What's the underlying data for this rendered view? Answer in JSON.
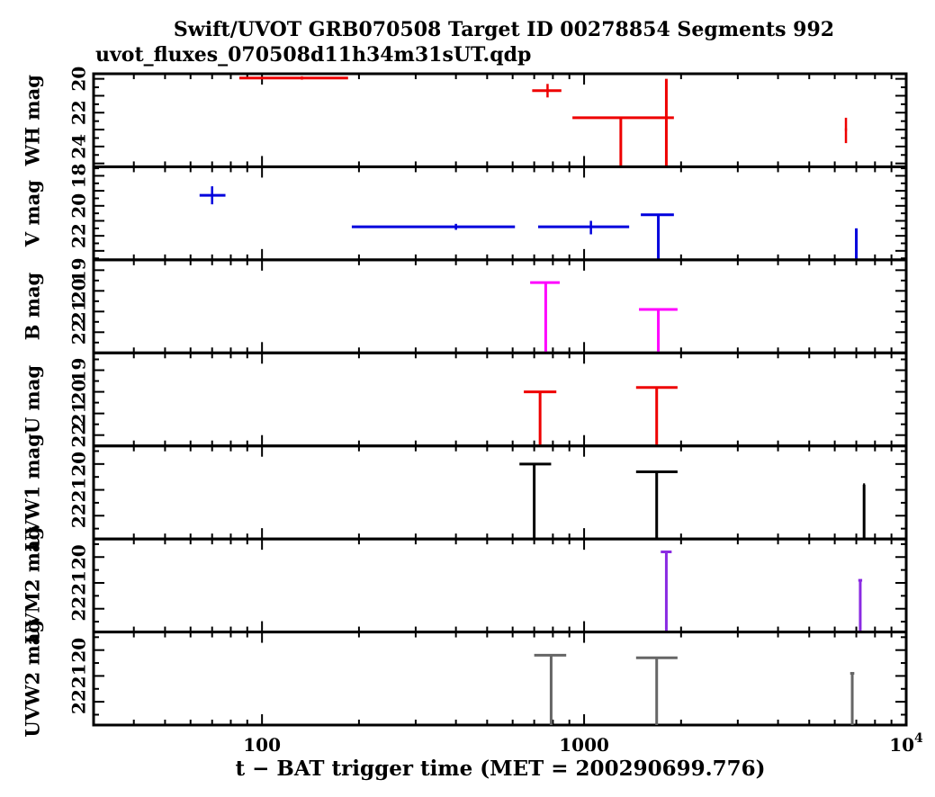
{
  "chart_data": {
    "type": "scatter",
    "title": "Swift/UVOT GRB070508 Target ID 00278854 Segments 992",
    "subtitle": "uvot_fluxes_070508d11h34m31sUT.qdp",
    "xlabel": "t − BAT trigger time (MET = 200290699.776)",
    "x_scale": "log",
    "xlim": [
      30,
      10000
    ],
    "x_ticks": [
      {
        "value": 100,
        "label": "100"
      },
      {
        "value": 1000,
        "label": "1000"
      },
      {
        "value": 10000,
        "label": "10",
        "sup": "4"
      }
    ],
    "panels": [
      {
        "name": "WH",
        "ylabel": "WH mag",
        "color": "#ee0000",
        "ylim": [
          25.2,
          19.7
        ],
        "y_ticks": [
          {
            "value": 20,
            "label": "20"
          },
          {
            "value": 22,
            "label": "22"
          },
          {
            "value": 24,
            "label": "24"
          }
        ],
        "points": [
          {
            "x": 133,
            "xlo": 85,
            "xhi": 185,
            "y": 19.95,
            "ylo": 19.85,
            "yhi": 20.05
          },
          {
            "x": 770,
            "xlo": 690,
            "xhi": 850,
            "y": 20.7,
            "ylo": 20.3,
            "yhi": 21.1
          },
          {
            "x": 1300,
            "xlo": 920,
            "xhi": 1900,
            "y": 22.3,
            "ylo": 22.3,
            "yhi": 25.2,
            "upper_limit": true
          },
          {
            "x": 1800,
            "xlo": 1800,
            "xhi": 1800,
            "y": 20.0,
            "ylo": 20.0,
            "yhi": 25.2,
            "upper_limit": true
          },
          {
            "x": 6500,
            "xlo": 6450,
            "xhi": 6550,
            "y": 23.0,
            "ylo": 22.3,
            "yhi": 23.8
          }
        ]
      },
      {
        "name": "V",
        "ylabel": "V mag",
        "color": "#0000dd",
        "ylim": [
          23.6,
          17.4
        ],
        "y_ticks": [
          {
            "value": 18,
            "label": "18"
          },
          {
            "value": 20,
            "label": "20"
          },
          {
            "value": 22,
            "label": "22"
          }
        ],
        "points": [
          {
            "x": 70,
            "xlo": 64,
            "xhi": 77,
            "y": 19.3,
            "ylo": 18.7,
            "yhi": 19.9
          },
          {
            "x": 400,
            "xlo": 190,
            "xhi": 610,
            "y": 21.4,
            "ylo": 21.2,
            "yhi": 21.6
          },
          {
            "x": 1050,
            "xlo": 720,
            "xhi": 1380,
            "y": 21.4,
            "ylo": 21.0,
            "yhi": 21.9
          },
          {
            "x": 1700,
            "xlo": 1500,
            "xhi": 1900,
            "y": 20.6,
            "ylo": 20.6,
            "yhi": 23.6,
            "upper_limit": true
          },
          {
            "x": 7000,
            "xlo": 7000,
            "xhi": 7000,
            "y": 21.5,
            "ylo": 21.5,
            "yhi": 23.6,
            "upper_limit": true
          }
        ]
      },
      {
        "name": "B",
        "ylabel": "B mag",
        "color": "#ff00ff",
        "ylim": [
          23.0,
          18.5
        ],
        "y_ticks": [
          {
            "value": 19,
            "label": "19"
          },
          {
            "value": 20,
            "label": "20"
          },
          {
            "value": 21,
            "label": "21"
          },
          {
            "value": 22,
            "label": "22"
          }
        ],
        "points": [
          {
            "x": 760,
            "xlo": 680,
            "xhi": 840,
            "y": 19.6,
            "ylo": 19.6,
            "yhi": 23.0,
            "upper_limit": true
          },
          {
            "x": 1700,
            "xlo": 1480,
            "xhi": 1950,
            "y": 20.9,
            "ylo": 20.9,
            "yhi": 23.0,
            "upper_limit": true
          }
        ]
      },
      {
        "name": "U",
        "ylabel": "U mag",
        "color": "#ee0000",
        "ylim": [
          22.5,
          18.2
        ],
        "y_ticks": [
          {
            "value": 19,
            "label": "19"
          },
          {
            "value": 20,
            "label": "20"
          },
          {
            "value": 21,
            "label": "21"
          },
          {
            "value": 22,
            "label": "22"
          }
        ],
        "points": [
          {
            "x": 730,
            "xlo": 650,
            "xhi": 820,
            "y": 20.0,
            "ylo": 20.0,
            "yhi": 22.5,
            "upper_limit": true
          },
          {
            "x": 1680,
            "xlo": 1450,
            "xhi": 1950,
            "y": 19.8,
            "ylo": 19.8,
            "yhi": 22.5,
            "upper_limit": true
          }
        ]
      },
      {
        "name": "UVW1",
        "ylabel": "UVW1 mag",
        "color": "#000000",
        "ylim": [
          22.9,
          19.3
        ],
        "y_ticks": [
          {
            "value": 20,
            "label": "20"
          },
          {
            "value": 21,
            "label": "21"
          },
          {
            "value": 22,
            "label": "22"
          }
        ],
        "points": [
          {
            "x": 700,
            "xlo": 630,
            "xhi": 790,
            "y": 20.0,
            "ylo": 20.0,
            "yhi": 22.9,
            "upper_limit": true
          },
          {
            "x": 1680,
            "xlo": 1450,
            "xhi": 1950,
            "y": 20.3,
            "ylo": 20.3,
            "yhi": 22.9,
            "upper_limit": true
          },
          {
            "x": 7400,
            "xlo": 7350,
            "xhi": 7450,
            "y": 20.8,
            "ylo": 20.8,
            "yhi": 22.9,
            "upper_limit": true
          }
        ]
      },
      {
        "name": "UVM2",
        "ylabel": "UVM2 mag",
        "color": "#8a2be2",
        "ylim": [
          22.9,
          19.3
        ],
        "y_ticks": [
          {
            "value": 20,
            "label": "20"
          },
          {
            "value": 21,
            "label": "21"
          },
          {
            "value": 22,
            "label": "22"
          }
        ],
        "points": [
          {
            "x": 1800,
            "xlo": 1730,
            "xhi": 1870,
            "y": 19.8,
            "ylo": 19.8,
            "yhi": 22.9,
            "upper_limit": true
          },
          {
            "x": 7200,
            "xlo": 7100,
            "xhi": 7300,
            "y": 20.9,
            "ylo": 20.9,
            "yhi": 22.9,
            "upper_limit": true
          }
        ]
      },
      {
        "name": "UVW2",
        "ylabel": "UVW2 mag",
        "color": "#666666",
        "ylim": [
          22.9,
          19.3
        ],
        "y_ticks": [
          {
            "value": 20,
            "label": "20"
          },
          {
            "value": 21,
            "label": "21"
          },
          {
            "value": 22,
            "label": "22"
          }
        ],
        "points": [
          {
            "x": 790,
            "xlo": 700,
            "xhi": 880,
            "y": 20.2,
            "ylo": 20.2,
            "yhi": 22.9,
            "upper_limit": true
          },
          {
            "x": 1680,
            "xlo": 1450,
            "xhi": 1950,
            "y": 20.3,
            "ylo": 20.3,
            "yhi": 22.9,
            "upper_limit": true
          },
          {
            "x": 6800,
            "xlo": 6700,
            "xhi": 6900,
            "y": 20.9,
            "ylo": 20.9,
            "yhi": 22.9,
            "upper_limit": true
          }
        ]
      }
    ]
  }
}
